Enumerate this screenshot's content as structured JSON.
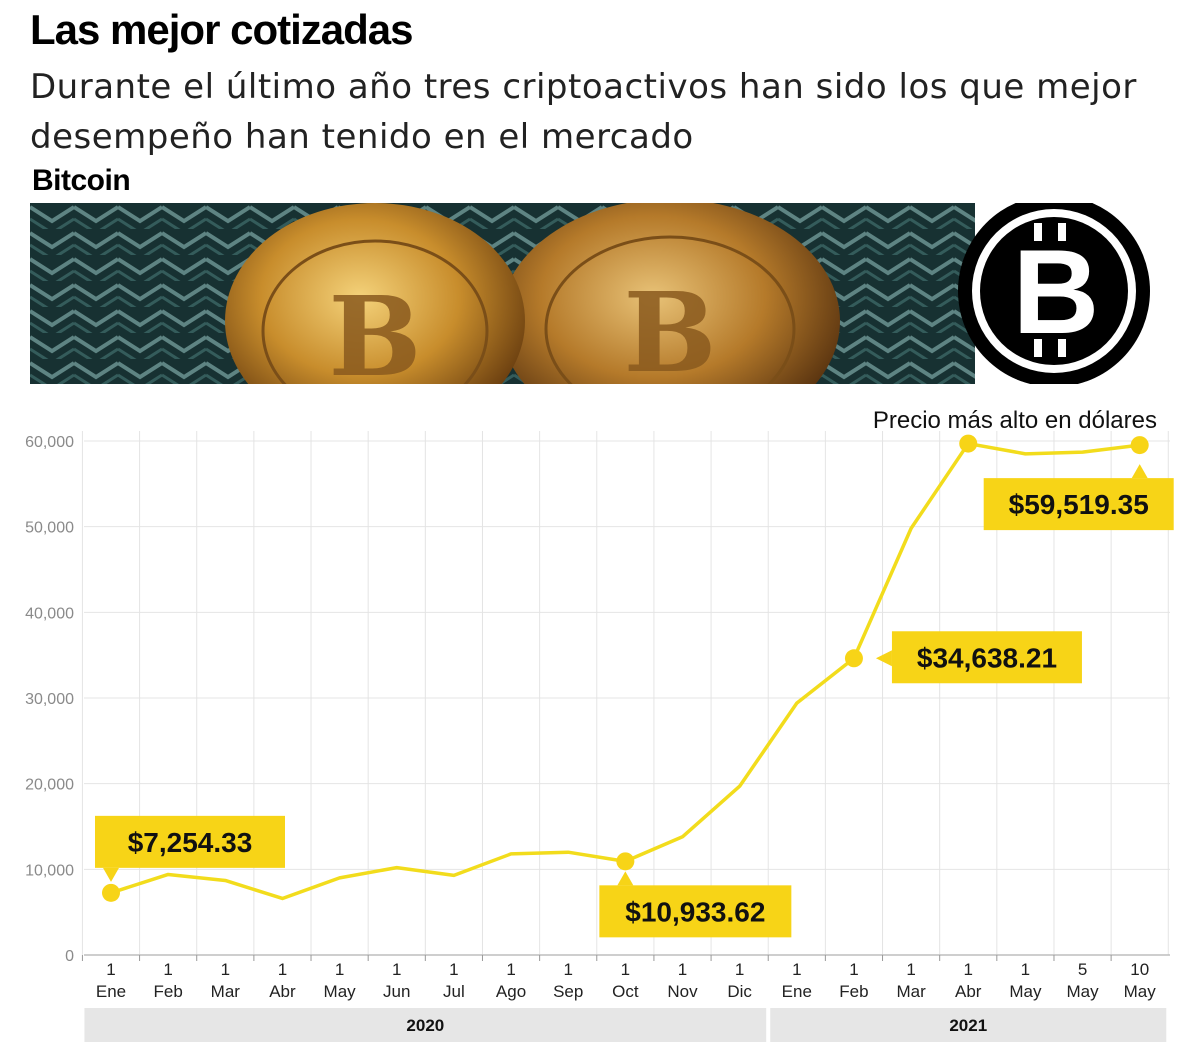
{
  "header": {
    "title": "Las mejor cotizadas",
    "subtitle": "Durante el último año tres criptoactivos han sido los que mejor desempeño han tenido en el mercado",
    "section": "Bitcoin"
  },
  "colors": {
    "line": "#f2dc1c",
    "callout": "#f7d417",
    "grid": "#e4e4e4",
    "year_band": "#e6e6e6"
  },
  "chart_data": {
    "type": "line",
    "annotation": "Precio más alto en dólares",
    "ylim": [
      0,
      60000
    ],
    "yticks": [
      "0",
      "10,000",
      "20,000",
      "30,000",
      "40,000",
      "50,000",
      "60,000"
    ],
    "ytick_values": [
      0,
      10000,
      20000,
      30000,
      40000,
      50000,
      60000
    ],
    "x_top": [
      "1",
      "1",
      "1",
      "1",
      "1",
      "1",
      "1",
      "1",
      "1",
      "1",
      "1",
      "1",
      "1",
      "1",
      "1",
      "1",
      "1",
      "5",
      "10"
    ],
    "x_bottom": [
      "Ene",
      "Feb",
      "Mar",
      "Abr",
      "May",
      "Jun",
      "Jul",
      "Ago",
      "Sep",
      "Oct",
      "Nov",
      "Dic",
      "Ene",
      "Feb",
      "Mar",
      "Abr",
      "May",
      "May",
      "May"
    ],
    "years": [
      {
        "label": "2020",
        "from": 0,
        "to": 11
      },
      {
        "label": "2021",
        "from": 12,
        "to": 18
      }
    ],
    "grid": true,
    "series": [
      {
        "values": [
          7254.33,
          9400,
          8700,
          6600,
          9000,
          10200,
          9300,
          11800,
          12000,
          10933.62,
          13800,
          19700,
          29400,
          34638.21,
          49800,
          59700,
          58500,
          58700,
          59519.35
        ]
      }
    ],
    "callouts": [
      {
        "index": 0,
        "label": "$7,254.33"
      },
      {
        "index": 9,
        "label": "$10,933.62"
      },
      {
        "index": 13,
        "label": "$34,638.21"
      },
      {
        "index": 18,
        "label": "$59,519.35"
      }
    ],
    "markers": [
      0,
      9,
      13,
      15,
      18
    ]
  }
}
